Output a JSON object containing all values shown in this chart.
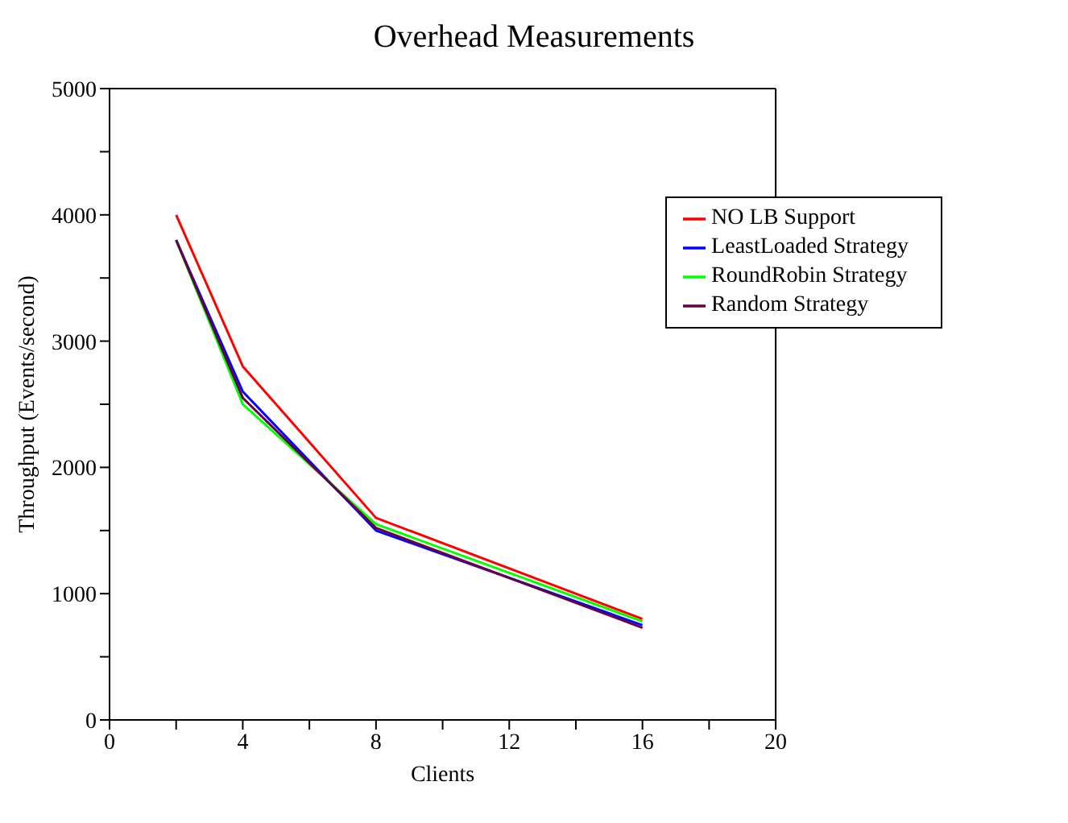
{
  "chart_data": {
    "type": "line",
    "title": "Overhead Measurements",
    "xlabel": "Clients",
    "ylabel": "Throughput (Events/second)",
    "x": [
      2,
      4,
      8,
      16
    ],
    "series": [
      {
        "name": "NO LB Support",
        "color": "#ff0000",
        "values": [
          4000,
          2800,
          1600,
          800
        ]
      },
      {
        "name": "LeastLoaded Strategy",
        "color": "#0000ff",
        "values": [
          3800,
          2600,
          1500,
          750
        ]
      },
      {
        "name": "RoundRobin Strategy",
        "color": "#00ff00",
        "values": [
          3800,
          2500,
          1550,
          780
        ]
      },
      {
        "name": "Random Strategy",
        "color": "#660044",
        "values": [
          3800,
          2550,
          1520,
          730
        ]
      }
    ],
    "xlim": [
      0,
      20
    ],
    "xticks": [
      0,
      {
        "value": 2,
        "label": null
      },
      4,
      {
        "value": 6,
        "label": null
      },
      8,
      {
        "value": 10,
        "label": null
      },
      12,
      {
        "value": 14,
        "label": null
      },
      16,
      {
        "value": 18,
        "label": null
      },
      20
    ],
    "ylim": [
      0,
      5000
    ],
    "yticks": [
      0,
      {
        "value": 500,
        "label": null
      },
      1000,
      {
        "value": 1500,
        "label": null
      },
      2000,
      {
        "value": 2500,
        "label": null
      },
      3000,
      {
        "value": 3500,
        "label": null
      },
      4000,
      {
        "value": 4500,
        "label": null
      },
      5000
    ],
    "grid": false,
    "legend": "top right",
    "marker": "none",
    "line_style": "solid"
  }
}
